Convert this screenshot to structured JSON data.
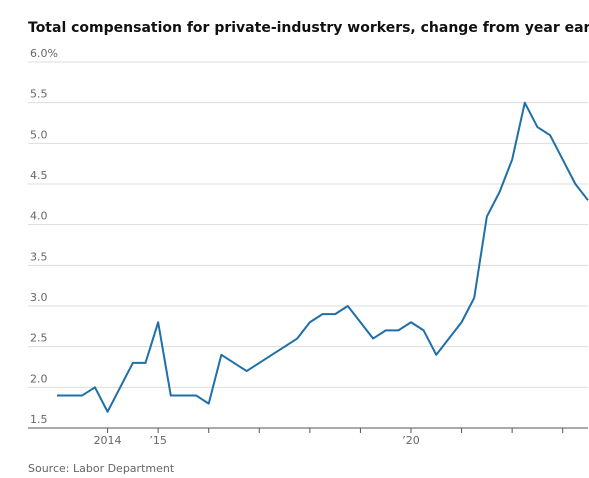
{
  "chart_data": {
    "type": "line",
    "title": "Total compensation for private-industry workers, change from year earlier",
    "source": "Source: Labor Department",
    "x": [
      2013,
      2013.25,
      2013.5,
      2013.75,
      2014,
      2014.25,
      2014.5,
      2014.75,
      2015,
      2015.25,
      2015.5,
      2015.75,
      2016,
      2016.25,
      2016.5,
      2016.75,
      2017,
      2017.25,
      2017.5,
      2017.75,
      2018,
      2018.25,
      2018.5,
      2018.75,
      2019,
      2019.25,
      2019.5,
      2019.75,
      2020,
      2020.25,
      2020.5,
      2020.75,
      2021,
      2021.25,
      2021.5,
      2021.75,
      2022,
      2022.25,
      2022.5,
      2022.75,
      2023,
      2023.25,
      2023.5
    ],
    "values": [
      1.9,
      1.9,
      1.9,
      2.0,
      1.7,
      2.0,
      2.3,
      2.3,
      2.8,
      1.9,
      1.9,
      1.9,
      1.8,
      2.4,
      2.3,
      2.2,
      2.3,
      2.4,
      2.5,
      2.6,
      2.8,
      2.9,
      2.9,
      3.0,
      2.8,
      2.6,
      2.7,
      2.7,
      2.8,
      2.7,
      2.4,
      2.6,
      2.8,
      3.1,
      4.1,
      4.4,
      4.8,
      5.5,
      5.2,
      5.1,
      4.8,
      4.5,
      4.3
    ],
    "color": "#1f6fa8",
    "xlim": [
      2013,
      2023.5
    ],
    "xticks": [
      {
        "value": 2014,
        "label": "2014"
      },
      {
        "value": 2015,
        "label": "’15"
      },
      {
        "value": 2016,
        "label": null
      },
      {
        "value": 2017,
        "label": null
      },
      {
        "value": 2018,
        "label": null
      },
      {
        "value": 2019,
        "label": null
      },
      {
        "value": 2020,
        "label": "’20"
      },
      {
        "value": 2021,
        "label": null
      },
      {
        "value": 2022,
        "label": null
      },
      {
        "value": 2023,
        "label": null
      }
    ],
    "ylim": [
      1.5,
      6.0
    ],
    "yticks": [
      1.5,
      {
        "value": 2,
        "label": "2.0"
      },
      2.5,
      {
        "value": 3,
        "label": "3.0"
      },
      3.5,
      {
        "value": 4,
        "label": "4.0"
      },
      4.5,
      {
        "value": 5,
        "label": "5.0"
      },
      5.5,
      {
        "value": 6,
        "label": "6.0%"
      }
    ],
    "grid": true
  }
}
